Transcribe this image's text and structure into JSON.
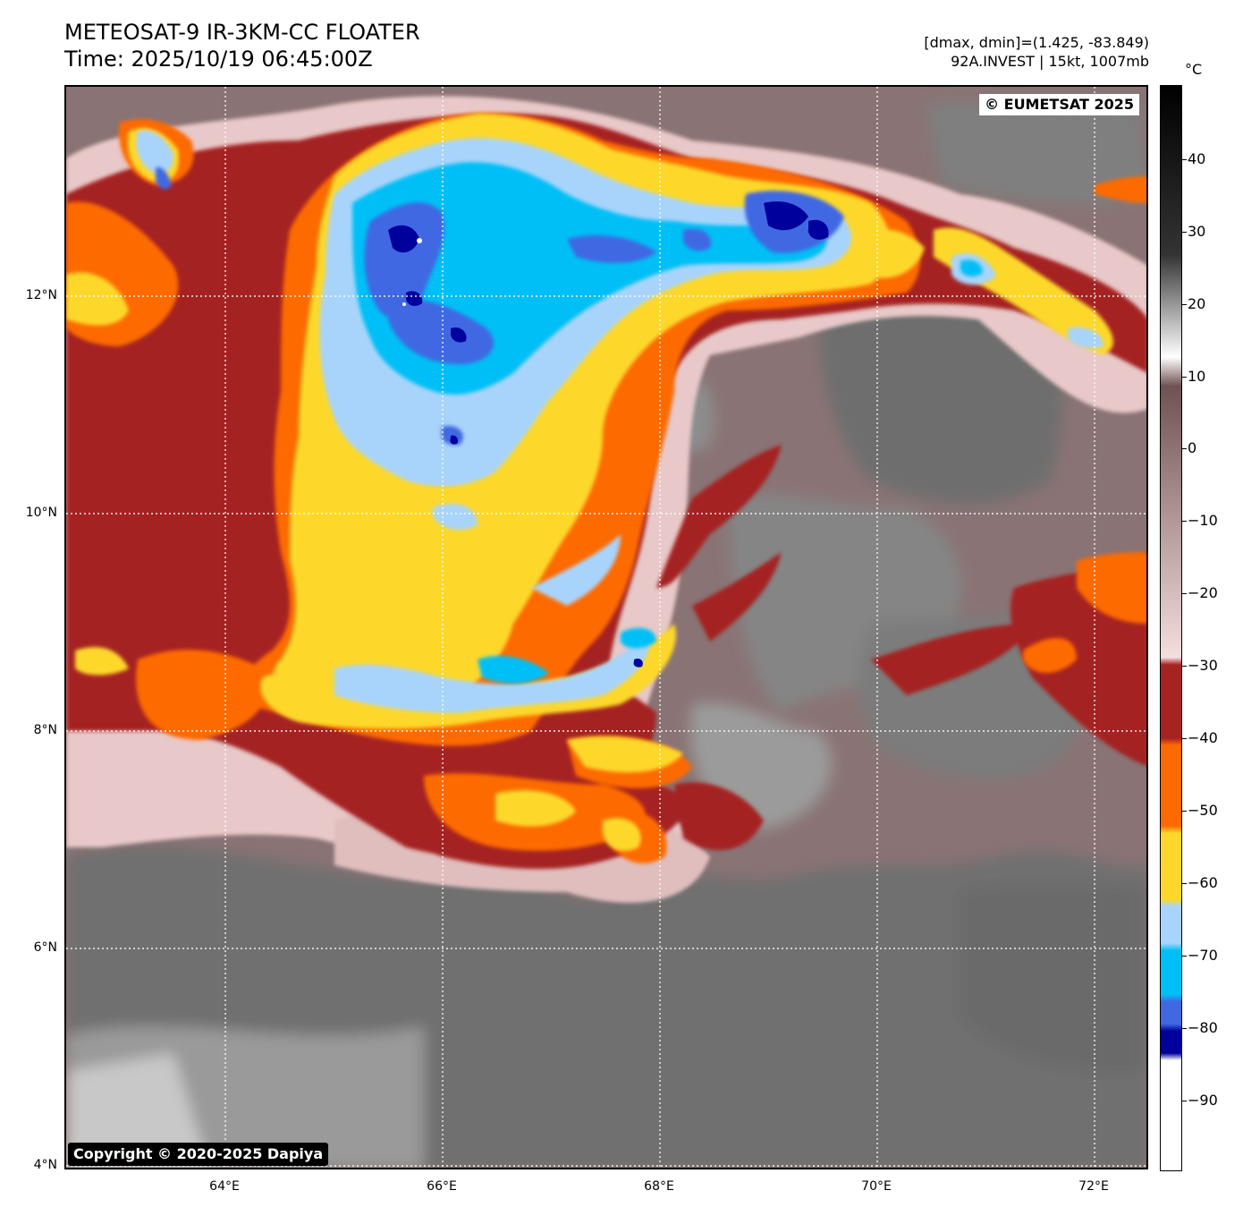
{
  "header": {
    "title": "METEOSAT-9 IR-3KM-CC FLOATER",
    "time": "Time: 2025/10/19 06:45:00Z",
    "range_info": "[dmax, dmin]=(1.425, -83.849)",
    "storm_info": "92A.INVEST | 15kt, 1007mb"
  },
  "map": {
    "watermark": "© EUMETSAT 2025",
    "copyright": "Copyright © 2020-2025 Dapiya",
    "lat_labels": [
      "12°N",
      "10°N",
      "8°N",
      "6°N",
      "4°N"
    ],
    "lon_labels": [
      "64°E",
      "66°E",
      "68°E",
      "70°E",
      "72°E"
    ]
  },
  "colorbar": {
    "unit": "°C",
    "tick_labels": [
      "40",
      "30",
      "20",
      "10",
      "0",
      "−10",
      "−20",
      "−30",
      "−40",
      "−50",
      "−60",
      "−70",
      "−80",
      "−90"
    ],
    "stops": [
      {
        "t": 48,
        "color": "#000000"
      },
      {
        "t": 25,
        "color": "#333333"
      },
      {
        "t": 11,
        "color": "#ffffff"
      },
      {
        "t": 7,
        "color": "#6f5253"
      },
      {
        "t": -30,
        "color": "#f4dede"
      },
      {
        "t": -31,
        "color": "#a52422"
      },
      {
        "t": -41,
        "color": "#a52422"
      },
      {
        "t": -42,
        "color": "#fd6a02"
      },
      {
        "t": -53,
        "color": "#fd6a02"
      },
      {
        "t": -54,
        "color": "#fdd82b"
      },
      {
        "t": -63,
        "color": "#fdd82b"
      },
      {
        "t": -64,
        "color": "#a8d4fb"
      },
      {
        "t": -69,
        "color": "#a8d4fb"
      },
      {
        "t": -70,
        "color": "#00bff6"
      },
      {
        "t": -76,
        "color": "#00bff6"
      },
      {
        "t": -77,
        "color": "#3f68e2"
      },
      {
        "t": -80,
        "color": "#3f68e2"
      },
      {
        "t": -81,
        "color": "#00009c"
      },
      {
        "t": -84,
        "color": "#00009c"
      },
      {
        "t": -85,
        "color": "#ffffff"
      },
      {
        "t": -100,
        "color": "#ffffff"
      }
    ]
  },
  "colors": {
    "dark_red": "#a52422",
    "orange": "#fd6a02",
    "yellow": "#fdd82b",
    "light_blue": "#a8d4fb",
    "cyan": "#00bff6",
    "blue": "#3f68e2",
    "navy": "#00009c",
    "pink": "#eecdcd",
    "mauve": "#8a6f70",
    "gray": "#7a7a7a"
  }
}
